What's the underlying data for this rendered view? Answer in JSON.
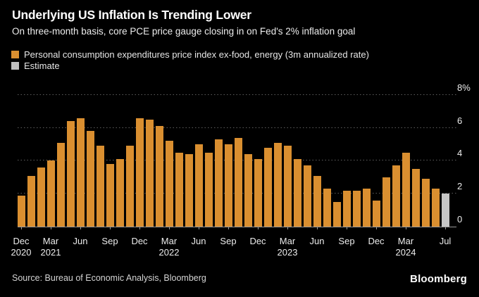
{
  "header": {
    "title": "Underlying US Inflation Is Trending Lower",
    "subtitle": "On three-month basis, core PCE price gauge closing in on Fed's 2% inflation goal"
  },
  "legend": {
    "pce": {
      "label": "Personal consumption expenditures price index ex-food, energy (3m annualized rate)",
      "color": "#da8f30"
    },
    "estimate": {
      "label": "Estimate",
      "color": "#bfbfbf"
    }
  },
  "footer": {
    "source": "Source: Bureau of Economic Analysis, Bloomberg",
    "brand": "Bloomberg"
  },
  "colors": {
    "background": "#000000",
    "bar": "#da8f30",
    "estimate": "#c6c6c6",
    "gridline": "#5e5e5e",
    "axis": "#9a9a9a",
    "text": "#ececec"
  },
  "chart_data": {
    "type": "bar",
    "title": "Underlying US Inflation Is Trending Lower",
    "subtitle": "On three-month basis, core PCE price gauge closing in on Fed's 2% inflation goal",
    "series_name": "Personal consumption expenditures price index ex-food, energy (3m annualized rate)",
    "unit": "%",
    "ylim": [
      0,
      8
    ],
    "yticks": [
      0,
      2,
      4,
      6,
      8
    ],
    "ytick_labels": [
      "0",
      "2",
      "4",
      "6",
      "8%"
    ],
    "grid": "dotted-horizontal",
    "legend_position": "top-left",
    "x": [
      "Dec 2020",
      "Jan 2021",
      "Feb 2021",
      "Mar 2021",
      "Apr 2021",
      "May 2021",
      "Jun 2021",
      "Jul 2021",
      "Aug 2021",
      "Sep 2021",
      "Oct 2021",
      "Nov 2021",
      "Dec 2021",
      "Jan 2022",
      "Feb 2022",
      "Mar 2022",
      "Apr 2022",
      "May 2022",
      "Jun 2022",
      "Jul 2022",
      "Aug 2022",
      "Sep 2022",
      "Oct 2022",
      "Nov 2022",
      "Dec 2022",
      "Jan 2023",
      "Feb 2023",
      "Mar 2023",
      "Apr 2023",
      "May 2023",
      "Jun 2023",
      "Jul 2023",
      "Aug 2023",
      "Sep 2023",
      "Oct 2023",
      "Nov 2023",
      "Dec 2023",
      "Jan 2024",
      "Feb 2024",
      "Mar 2024",
      "Apr 2024",
      "May 2024",
      "Jun 2024",
      "Jul 2024"
    ],
    "values": [
      1.9,
      3.1,
      3.6,
      4.0,
      5.1,
      6.4,
      6.6,
      5.8,
      4.9,
      3.8,
      4.1,
      4.9,
      6.6,
      6.5,
      6.1,
      5.2,
      4.5,
      4.4,
      5.0,
      4.5,
      5.3,
      5.0,
      5.4,
      4.4,
      4.1,
      4.8,
      5.1,
      4.9,
      4.1,
      3.7,
      3.1,
      2.3,
      1.5,
      2.2,
      2.2,
      2.3,
      1.6,
      3.0,
      3.7,
      4.5,
      3.5,
      2.9,
      2.3,
      2.0
    ],
    "estimate_index": 43,
    "xticks": [
      {
        "index": 0,
        "label": "Dec",
        "year": "2020"
      },
      {
        "index": 3,
        "label": "Mar",
        "year": "2021"
      },
      {
        "index": 6,
        "label": "Jun"
      },
      {
        "index": 9,
        "label": "Sep"
      },
      {
        "index": 12,
        "label": "Dec"
      },
      {
        "index": 15,
        "label": "Mar",
        "year": "2022"
      },
      {
        "index": 18,
        "label": "Jun"
      },
      {
        "index": 21,
        "label": "Sep"
      },
      {
        "index": 24,
        "label": "Dec"
      },
      {
        "index": 27,
        "label": "Mar",
        "year": "2023"
      },
      {
        "index": 30,
        "label": "Jun"
      },
      {
        "index": 33,
        "label": "Sep"
      },
      {
        "index": 36,
        "label": "Dec"
      },
      {
        "index": 39,
        "label": "Mar",
        "year": "2024"
      },
      {
        "index": 43,
        "label": "Jul"
      }
    ]
  }
}
